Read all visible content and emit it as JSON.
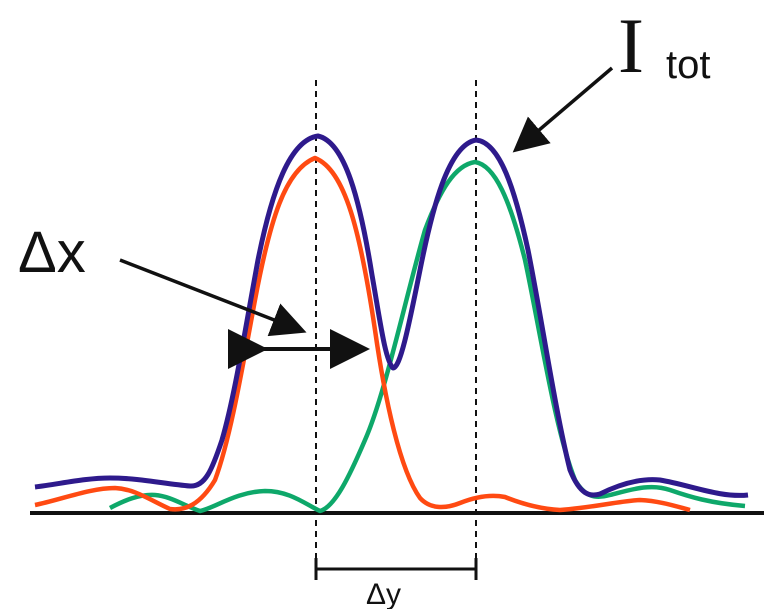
{
  "labels": {
    "i_main": "I",
    "i_sub": "tot",
    "delta_x": "Δx",
    "delta_y": "Δy"
  },
  "colors": {
    "total": "#2e1a8c",
    "peak_left": "#ff4a12",
    "peak_right": "#0ea86a",
    "ink": "#111111"
  }
}
